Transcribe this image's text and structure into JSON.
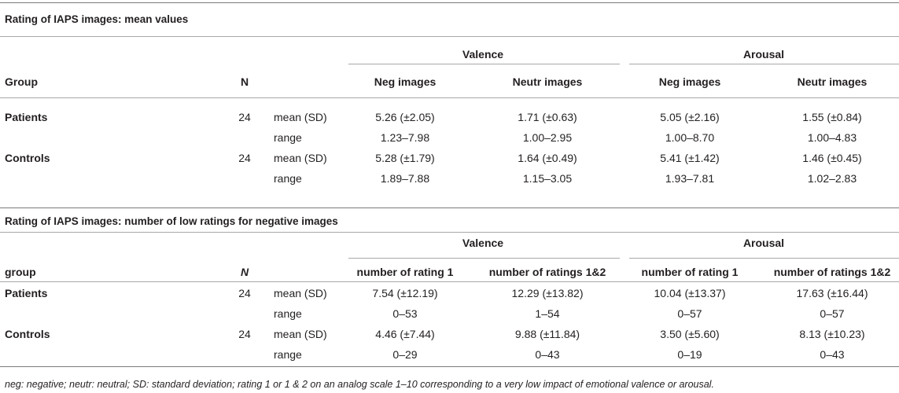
{
  "section1": {
    "title": "Rating of IAPS images: mean values",
    "group_header": "Group",
    "n_header": "N",
    "valence": "Valence",
    "arousal": "Arousal",
    "col_headers": [
      "Neg images",
      "Neutr images",
      "Neg images",
      "Neutr images"
    ],
    "rows": [
      {
        "group": "Patients",
        "n": "24",
        "stat": "mean (SD)",
        "vals": [
          "5.26 (±2.05)",
          "1.71 (±0.63)",
          "5.05 (±2.16)",
          "1.55 (±0.84)"
        ]
      },
      {
        "group": "",
        "n": "",
        "stat": "range",
        "vals": [
          "1.23–7.98",
          "1.00–2.95",
          "1.00–8.70",
          "1.00–4.83"
        ]
      },
      {
        "group": "Controls",
        "n": "24",
        "stat": "mean (SD)",
        "vals": [
          "5.28 (±1.79)",
          "1.64 (±0.49)",
          "5.41 (±1.42)",
          "1.46 (±0.45)"
        ]
      },
      {
        "group": "",
        "n": "",
        "stat": "range",
        "vals": [
          "1.89–7.88",
          "1.15–3.05",
          "1.93–7.81",
          "1.02–2.83"
        ]
      }
    ]
  },
  "section2": {
    "title": "Rating of IAPS images: number of low ratings for negative images",
    "group_header": "group",
    "n_header": "N",
    "valence": "Valence",
    "arousal": "Arousal",
    "col_headers": [
      "number of rating 1",
      "number of ratings 1&2",
      "number of rating 1",
      "number of ratings 1&2"
    ],
    "rows": [
      {
        "group": "Patients",
        "n": "24",
        "stat": "mean (SD)",
        "vals": [
          "7.54 (±12.19)",
          "12.29 (±13.82)",
          "10.04 (±13.37)",
          "17.63 (±16.44)"
        ]
      },
      {
        "group": "",
        "n": "",
        "stat": "range",
        "vals": [
          "0–53",
          "1–54",
          "0–57",
          "0–57"
        ]
      },
      {
        "group": "Controls",
        "n": "24",
        "stat": "mean (SD)",
        "vals": [
          "4.46 (±7.44)",
          "9.88 (±11.84)",
          "3.50 (±5.60)",
          "8.13 (±10.23)"
        ]
      },
      {
        "group": "",
        "n": "",
        "stat": "range",
        "vals": [
          "0–29",
          "0–43",
          "0–19",
          "0–43"
        ]
      }
    ]
  },
  "footnote": "neg: negative; neutr: neutral; SD: standard deviation; rating 1 or 1 & 2 on an analog scale 1–10 corresponding to a very low impact of emotional valence or arousal."
}
